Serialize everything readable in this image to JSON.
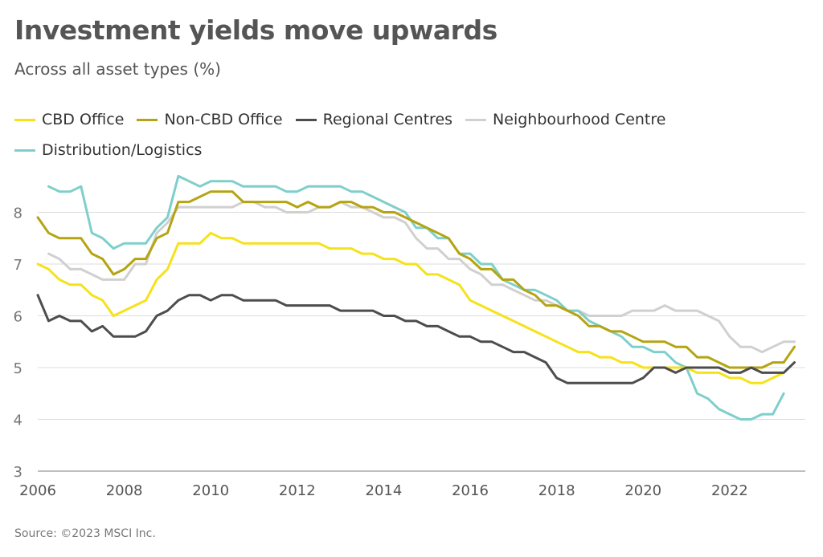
{
  "header": {
    "title": "Investment yields move upwards",
    "subtitle": "Across all asset types (%)"
  },
  "source": "Source: ©2023 MSCI Inc.",
  "chart_data": {
    "type": "line",
    "title": "Investment yields move upwards",
    "subtitle": "Across all asset types (%)",
    "xlabel": "",
    "ylabel": "",
    "xlim": [
      2006,
      2023.75
    ],
    "ylim": [
      3,
      9
    ],
    "x_ticks": [
      2006,
      2008,
      2010,
      2012,
      2014,
      2016,
      2018,
      2020,
      2022
    ],
    "y_ticks": [
      3,
      4,
      5,
      6,
      7,
      8
    ],
    "grid": "horizontal",
    "legend_position": "top-left",
    "series": [
      {
        "name": "CBD Office",
        "color": "#f5e21b",
        "x": [
          2006.0,
          2006.25,
          2006.5,
          2006.75,
          2007.0,
          2007.25,
          2007.5,
          2007.75,
          2008.0,
          2008.25,
          2008.5,
          2008.75,
          2009.0,
          2009.25,
          2009.5,
          2009.75,
          2010.0,
          2010.25,
          2010.5,
          2010.75,
          2011.0,
          2011.25,
          2011.5,
          2011.75,
          2012.0,
          2012.25,
          2012.5,
          2012.75,
          2013.0,
          2013.25,
          2013.5,
          2013.75,
          2014.0,
          2014.25,
          2014.5,
          2014.75,
          2015.0,
          2015.25,
          2015.5,
          2015.75,
          2016.0,
          2016.25,
          2016.5,
          2016.75,
          2017.0,
          2017.25,
          2017.5,
          2017.75,
          2018.0,
          2018.25,
          2018.5,
          2018.75,
          2019.0,
          2019.25,
          2019.5,
          2019.75,
          2020.0,
          2020.25,
          2020.5,
          2020.75,
          2021.0,
          2021.25,
          2021.5,
          2021.75,
          2022.0,
          2022.25,
          2022.5,
          2022.75,
          2023.0,
          2023.25,
          2023.5
        ],
        "values": [
          7.0,
          6.9,
          6.7,
          6.6,
          6.6,
          6.4,
          6.3,
          6.0,
          6.1,
          6.2,
          6.3,
          6.7,
          6.9,
          7.4,
          7.4,
          7.4,
          7.6,
          7.5,
          7.5,
          7.4,
          7.4,
          7.4,
          7.4,
          7.4,
          7.4,
          7.4,
          7.4,
          7.3,
          7.3,
          7.3,
          7.2,
          7.2,
          7.1,
          7.1,
          7.0,
          7.0,
          6.8,
          6.8,
          6.7,
          6.6,
          6.3,
          6.2,
          6.1,
          6.0,
          5.9,
          5.8,
          5.7,
          5.6,
          5.5,
          5.4,
          5.3,
          5.3,
          5.2,
          5.2,
          5.1,
          5.1,
          5.0,
          5.0,
          5.0,
          5.0,
          5.0,
          4.9,
          4.9,
          4.9,
          4.8,
          4.8,
          4.7,
          4.7,
          4.8,
          4.9,
          null
        ]
      },
      {
        "name": "Non-CBD Office",
        "color": "#b5a412",
        "x": [
          2006.0,
          2006.25,
          2006.5,
          2006.75,
          2007.0,
          2007.25,
          2007.5,
          2007.75,
          2008.0,
          2008.25,
          2008.5,
          2008.75,
          2009.0,
          2009.25,
          2009.5,
          2009.75,
          2010.0,
          2010.25,
          2010.5,
          2010.75,
          2011.0,
          2011.25,
          2011.5,
          2011.75,
          2012.0,
          2012.25,
          2012.5,
          2012.75,
          2013.0,
          2013.25,
          2013.5,
          2013.75,
          2014.0,
          2014.25,
          2014.5,
          2014.75,
          2015.0,
          2015.25,
          2015.5,
          2015.75,
          2016.0,
          2016.25,
          2016.5,
          2016.75,
          2017.0,
          2017.25,
          2017.5,
          2017.75,
          2018.0,
          2018.25,
          2018.5,
          2018.75,
          2019.0,
          2019.25,
          2019.5,
          2019.75,
          2020.0,
          2020.25,
          2020.5,
          2020.75,
          2021.0,
          2021.25,
          2021.5,
          2021.75,
          2022.0,
          2022.25,
          2022.5,
          2022.75,
          2023.0,
          2023.25,
          2023.5
        ],
        "values": [
          7.9,
          7.6,
          7.5,
          7.5,
          7.5,
          7.2,
          7.1,
          6.8,
          6.9,
          7.1,
          7.1,
          7.5,
          7.6,
          8.2,
          8.2,
          8.3,
          8.4,
          8.4,
          8.4,
          8.2,
          8.2,
          8.2,
          8.2,
          8.2,
          8.1,
          8.2,
          8.1,
          8.1,
          8.2,
          8.2,
          8.1,
          8.1,
          8.0,
          8.0,
          7.9,
          7.8,
          7.7,
          7.6,
          7.5,
          7.2,
          7.1,
          6.9,
          6.9,
          6.7,
          6.7,
          6.5,
          6.4,
          6.2,
          6.2,
          6.1,
          6.0,
          5.8,
          5.8,
          5.7,
          5.7,
          5.6,
          5.5,
          5.5,
          5.5,
          5.4,
          5.4,
          5.2,
          5.2,
          5.1,
          5.0,
          5.0,
          5.0,
          5.0,
          5.1,
          5.1,
          5.4
        ]
      },
      {
        "name": "Regional Centres",
        "color": "#4d4d4f",
        "x": [
          2006.0,
          2006.25,
          2006.5,
          2006.75,
          2007.0,
          2007.25,
          2007.5,
          2007.75,
          2008.0,
          2008.25,
          2008.5,
          2008.75,
          2009.0,
          2009.25,
          2009.5,
          2009.75,
          2010.0,
          2010.25,
          2010.5,
          2010.75,
          2011.0,
          2011.25,
          2011.5,
          2011.75,
          2012.0,
          2012.25,
          2012.5,
          2012.75,
          2013.0,
          2013.25,
          2013.5,
          2013.75,
          2014.0,
          2014.25,
          2014.5,
          2014.75,
          2015.0,
          2015.25,
          2015.5,
          2015.75,
          2016.0,
          2016.25,
          2016.5,
          2016.75,
          2017.0,
          2017.25,
          2017.5,
          2017.75,
          2018.0,
          2018.25,
          2018.5,
          2018.75,
          2019.0,
          2019.25,
          2019.5,
          2019.75,
          2020.0,
          2020.25,
          2020.5,
          2020.75,
          2021.0,
          2021.25,
          2021.5,
          2021.75,
          2022.0,
          2022.25,
          2022.5,
          2022.75,
          2023.0,
          2023.25,
          2023.5
        ],
        "values": [
          6.4,
          5.9,
          6.0,
          5.9,
          5.9,
          5.7,
          5.8,
          5.6,
          5.6,
          5.6,
          5.7,
          6.0,
          6.1,
          6.3,
          6.4,
          6.4,
          6.3,
          6.4,
          6.4,
          6.3,
          6.3,
          6.3,
          6.3,
          6.2,
          6.2,
          6.2,
          6.2,
          6.2,
          6.1,
          6.1,
          6.1,
          6.1,
          6.0,
          6.0,
          5.9,
          5.9,
          5.8,
          5.8,
          5.7,
          5.6,
          5.6,
          5.5,
          5.5,
          5.4,
          5.3,
          5.3,
          5.2,
          5.1,
          4.8,
          4.7,
          4.7,
          4.7,
          4.7,
          4.7,
          4.7,
          4.7,
          4.8,
          5.0,
          5.0,
          4.9,
          5.0,
          5.0,
          5.0,
          5.0,
          4.9,
          4.9,
          5.0,
          4.9,
          4.9,
          4.9,
          5.1
        ]
      },
      {
        "name": "Neighbourhood Centre",
        "color": "#d0d0d0",
        "x": [
          2006.25,
          2006.5,
          2006.75,
          2007.0,
          2007.25,
          2007.5,
          2007.75,
          2008.0,
          2008.25,
          2008.5,
          2008.75,
          2009.0,
          2009.25,
          2009.5,
          2009.75,
          2010.0,
          2010.25,
          2010.5,
          2010.75,
          2011.0,
          2011.25,
          2011.5,
          2011.75,
          2012.0,
          2012.25,
          2012.5,
          2012.75,
          2013.0,
          2013.25,
          2013.5,
          2013.75,
          2014.0,
          2014.25,
          2014.5,
          2014.75,
          2015.0,
          2015.25,
          2015.5,
          2015.75,
          2016.0,
          2016.25,
          2016.5,
          2016.75,
          2017.0,
          2017.25,
          2017.5,
          2017.75,
          2018.0,
          2018.25,
          2018.5,
          2018.75,
          2019.0,
          2019.25,
          2019.5,
          2019.75,
          2020.0,
          2020.25,
          2020.5,
          2020.75,
          2021.0,
          2021.25,
          2021.5,
          2021.75,
          2022.0,
          2022.25,
          2022.5,
          2022.75,
          2023.0,
          2023.25,
          2023.5
        ],
        "values": [
          7.2,
          7.1,
          6.9,
          6.9,
          6.8,
          6.7,
          6.7,
          6.7,
          7.0,
          7.0,
          7.6,
          7.8,
          8.1,
          8.1,
          8.1,
          8.1,
          8.1,
          8.1,
          8.2,
          8.2,
          8.1,
          8.1,
          8.0,
          8.0,
          8.0,
          8.1,
          8.1,
          8.2,
          8.1,
          8.1,
          8.0,
          7.9,
          7.9,
          7.8,
          7.5,
          7.3,
          7.3,
          7.1,
          7.1,
          6.9,
          6.8,
          6.6,
          6.6,
          6.5,
          6.4,
          6.3,
          6.3,
          6.2,
          6.1,
          6.1,
          6.0,
          6.0,
          6.0,
          6.0,
          6.1,
          6.1,
          6.1,
          6.2,
          6.1,
          6.1,
          6.1,
          6.0,
          5.9,
          5.6,
          5.4,
          5.4,
          5.3,
          5.4,
          5.5,
          5.5
        ]
      },
      {
        "name": "Distribution/Logistics",
        "color": "#7ecfcb",
        "x": [
          2006.25,
          2006.5,
          2006.75,
          2007.0,
          2007.25,
          2007.5,
          2007.75,
          2008.0,
          2008.25,
          2008.5,
          2008.75,
          2009.0,
          2009.25,
          2009.5,
          2009.75,
          2010.0,
          2010.25,
          2010.5,
          2010.75,
          2011.0,
          2011.25,
          2011.5,
          2011.75,
          2012.0,
          2012.25,
          2012.5,
          2012.75,
          2013.0,
          2013.25,
          2013.5,
          2013.75,
          2014.0,
          2014.25,
          2014.5,
          2014.75,
          2015.0,
          2015.25,
          2015.5,
          2015.75,
          2016.0,
          2016.25,
          2016.5,
          2016.75,
          2017.0,
          2017.25,
          2017.5,
          2017.75,
          2018.0,
          2018.25,
          2018.5,
          2018.75,
          2019.0,
          2019.25,
          2019.5,
          2019.75,
          2020.0,
          2020.25,
          2020.5,
          2020.75,
          2021.0,
          2021.25,
          2021.5,
          2021.75,
          2022.0,
          2022.25,
          2022.5,
          2022.75,
          2023.0,
          2023.25,
          2023.5
        ],
        "values": [
          8.5,
          8.4,
          8.4,
          8.5,
          7.6,
          7.5,
          7.3,
          7.4,
          7.4,
          7.4,
          7.7,
          7.9,
          8.7,
          8.6,
          8.5,
          8.6,
          8.6,
          8.6,
          8.5,
          8.5,
          8.5,
          8.5,
          8.4,
          8.4,
          8.5,
          8.5,
          8.5,
          8.5,
          8.4,
          8.4,
          8.3,
          8.2,
          8.1,
          8.0,
          7.7,
          7.7,
          7.5,
          7.5,
          7.2,
          7.2,
          7.0,
          7.0,
          6.7,
          6.6,
          6.5,
          6.5,
          6.4,
          6.3,
          6.1,
          6.1,
          5.9,
          5.8,
          5.7,
          5.6,
          5.4,
          5.4,
          5.3,
          5.3,
          5.1,
          5.0,
          4.5,
          4.4,
          4.2,
          4.1,
          4.0,
          4.0,
          4.1,
          4.1,
          4.5,
          null
        ]
      }
    ]
  }
}
